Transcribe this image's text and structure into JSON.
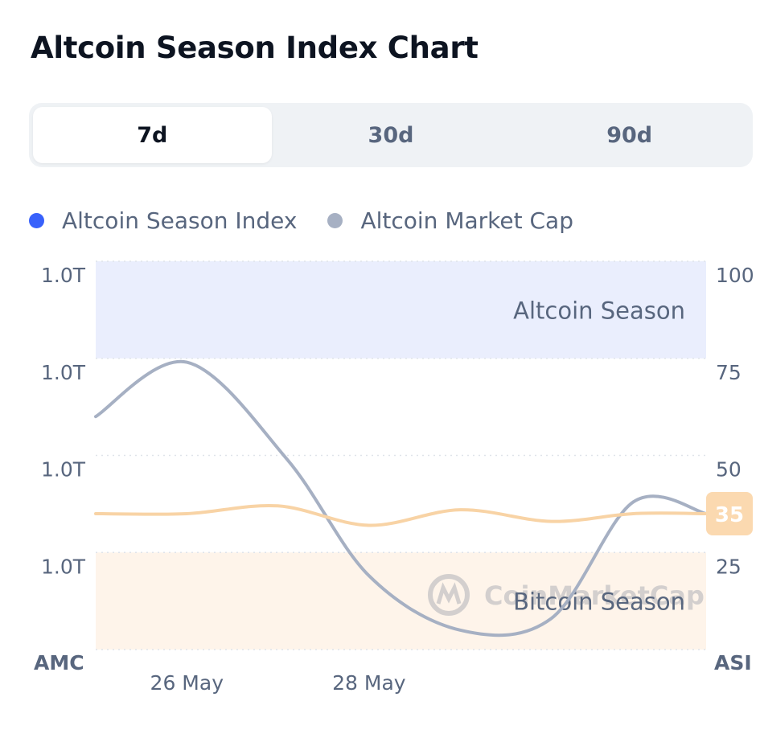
{
  "title": "Altcoin Season Index Chart",
  "tabs": [
    {
      "label": "7d",
      "active": true
    },
    {
      "label": "30d",
      "active": false
    },
    {
      "label": "90d",
      "active": false
    }
  ],
  "legend": [
    {
      "label": "Altcoin Season Index",
      "color": "#3861fb"
    },
    {
      "label": "Altcoin Market Cap",
      "color": "#a6b0c3"
    }
  ],
  "chart_data": {
    "type": "line",
    "left_axis_title": "AMC",
    "right_axis_title": "ASI",
    "left_ticks": [
      "1.0T",
      "1.0T",
      "1.0T",
      "1.0T"
    ],
    "right_ticks": [
      100,
      75,
      50,
      25
    ],
    "right_ylim": [
      0,
      100
    ],
    "x_ticks": [
      {
        "label": "26 May",
        "day": 1.3
      },
      {
        "label": "28 May",
        "day": 3.3
      }
    ],
    "x_range": [
      0.3,
      7.0
    ],
    "bands": [
      {
        "label": "Altcoin Season",
        "from": 75,
        "to": 100,
        "color": "#eaeefd"
      },
      {
        "label": "Bitcoin Season",
        "from": 0,
        "to": 25,
        "color": "#fef4ea"
      }
    ],
    "series": [
      {
        "name": "Altcoin Market Cap",
        "color": "#a6b0c3",
        "points": [
          [
            0.3,
            60
          ],
          [
            1.3,
            74
          ],
          [
            2.4,
            49
          ],
          [
            3.3,
            19
          ],
          [
            4.3,
            5
          ],
          [
            5.3,
            8
          ],
          [
            6.2,
            38
          ],
          [
            7.0,
            35
          ]
        ]
      },
      {
        "name": "Altcoin Season Index",
        "color": "#f8d3a5",
        "points": [
          [
            0.3,
            35
          ],
          [
            1.3,
            35
          ],
          [
            2.3,
            37
          ],
          [
            3.3,
            32
          ],
          [
            4.3,
            36
          ],
          [
            5.3,
            33
          ],
          [
            6.2,
            35
          ],
          [
            7.0,
            35
          ]
        ]
      }
    ],
    "current_value": "35",
    "current_badge_color": "#fbd9b0",
    "watermark": "CoinMarketCap"
  }
}
